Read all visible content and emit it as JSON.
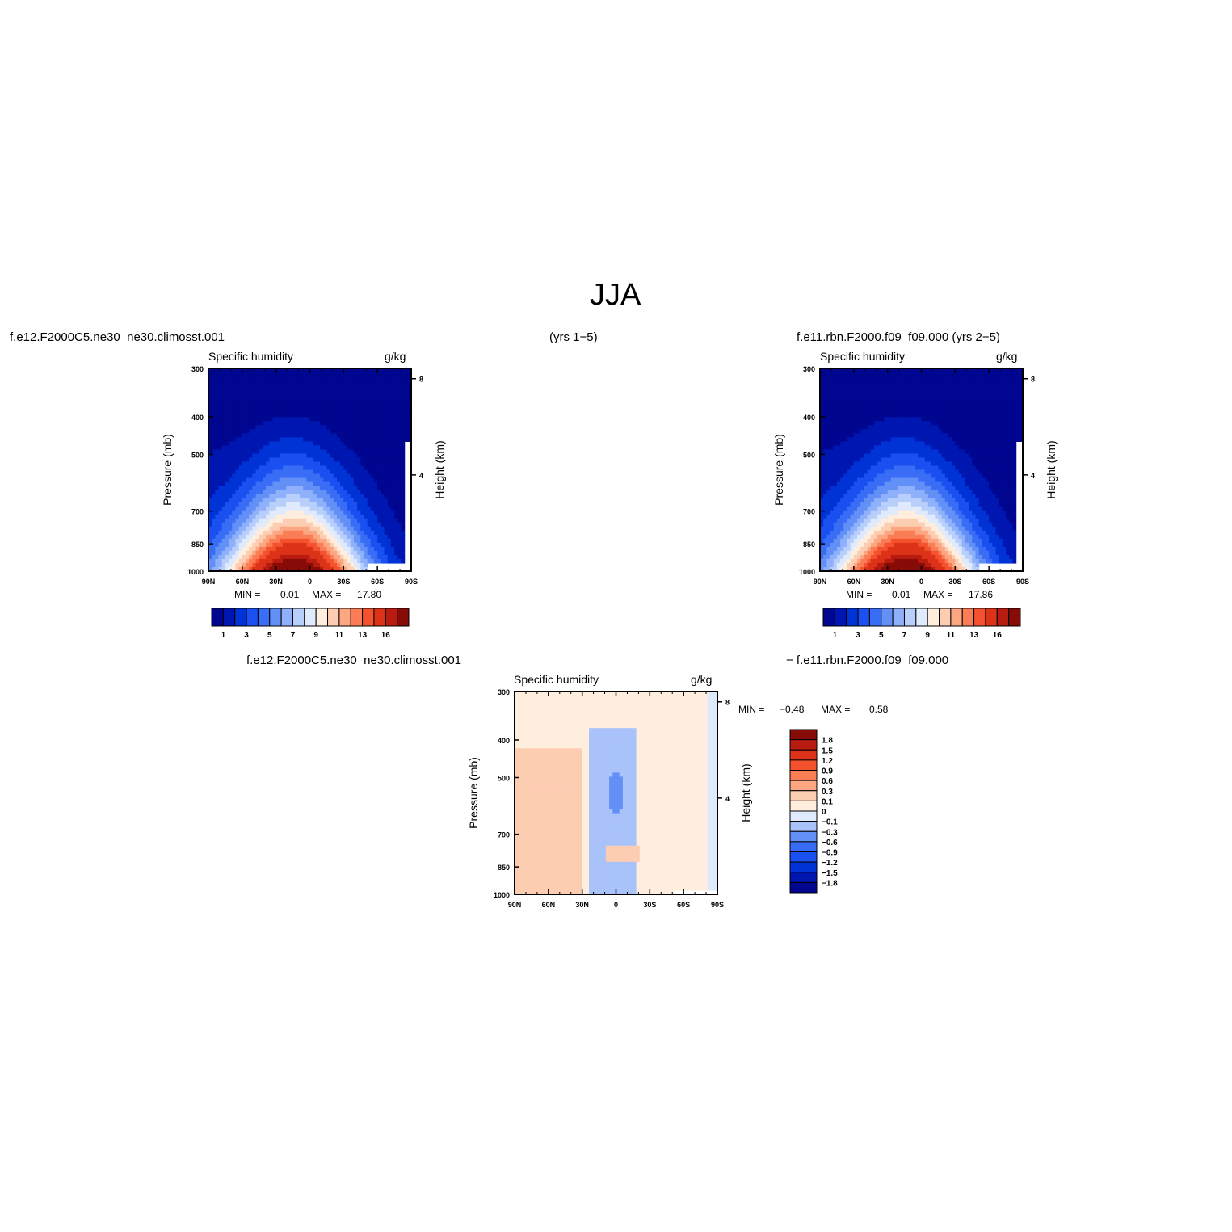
{
  "page": {
    "title": "JJA",
    "case1": "f.e12.F2000C5.ne30_ne30.climosst.001",
    "years": "(yrs 1−5)",
    "case2": "f.e11.rbn.F2000.f09_f09.000 (yrs 2−5)",
    "diff_left": "f.e12.F2000C5.ne30_ne30.climosst.001",
    "diff_right": "− f.e11.rbn.F2000.f09_f09.000"
  },
  "colors": {
    "full_palette": [
      "#00068f",
      "#0016b0",
      "#0033d6",
      "#1a4ff0",
      "#3a6df5",
      "#6290f7",
      "#8fb0fa",
      "#b9cffb",
      "#dfeafd",
      "#ffeedd",
      "#fdcdb2",
      "#fca682",
      "#fb7d55",
      "#f4522e",
      "#dc3218",
      "#b81b0f",
      "#870b06"
    ],
    "diff_palette": [
      "#00068f",
      "#0016b0",
      "#0033d6",
      "#1a4ff0",
      "#3a6df5",
      "#6290f7",
      "#a9c3fa",
      "#dfeafd",
      "#ffeedd",
      "#fdcdb2",
      "#fca682",
      "#fb7d55",
      "#f4522e",
      "#dc3218",
      "#b81b0f",
      "#870b06"
    ]
  },
  "chart_data": [
    {
      "type": "heatmap",
      "title": "Specific humidity",
      "units": "g/kg",
      "ylabel": "Pressure (mb)",
      "ylabel_right": "Height (km)",
      "x_ticks": [
        "90N",
        "60N",
        "30N",
        "0",
        "30S",
        "60S",
        "90S"
      ],
      "y_ticks": [
        "300",
        "400",
        "500",
        "700",
        "850",
        "1000"
      ],
      "y_right_ticks": [
        "8",
        "4"
      ],
      "min_label": "MIN =",
      "min_value": "0.01",
      "max_label": "MAX =",
      "max_value": "17.80",
      "colorbar_labels": [
        "1",
        "3",
        "5",
        "7",
        "9",
        "11",
        "13",
        "16"
      ]
    },
    {
      "type": "heatmap",
      "title": "Specific humidity",
      "units": "g/kg",
      "ylabel": "Pressure (mb)",
      "ylabel_right": "Height (km)",
      "x_ticks": [
        "90N",
        "60N",
        "30N",
        "0",
        "30S",
        "60S",
        "90S"
      ],
      "y_ticks": [
        "300",
        "400",
        "500",
        "700",
        "850",
        "1000"
      ],
      "y_right_ticks": [
        "8",
        "4"
      ],
      "min_label": "MIN =",
      "min_value": "0.01",
      "max_label": "MAX =",
      "max_value": "17.86",
      "colorbar_labels": [
        "1",
        "3",
        "5",
        "7",
        "9",
        "11",
        "13",
        "16"
      ]
    },
    {
      "type": "heatmap",
      "title": "Specific humidity",
      "units": "g/kg",
      "ylabel": "Pressure (mb)",
      "ylabel_right": "Height (km)",
      "x_ticks": [
        "90N",
        "60N",
        "30N",
        "0",
        "30S",
        "60S",
        "90S"
      ],
      "y_ticks": [
        "300",
        "400",
        "500",
        "700",
        "850",
        "1000"
      ],
      "y_right_ticks": [
        "8",
        "4"
      ],
      "min_label": "MIN =",
      "min_value": "−0.48",
      "max_label": "MAX =",
      "max_value": "0.58",
      "colorbar_labels": [
        "1.8",
        "1.5",
        "1.2",
        "0.9",
        "0.6",
        "0.3",
        "0.1",
        "0",
        "−0.1",
        "−0.3",
        "−0.6",
        "−0.9",
        "−1.2",
        "−1.5",
        "−1.8"
      ]
    }
  ]
}
